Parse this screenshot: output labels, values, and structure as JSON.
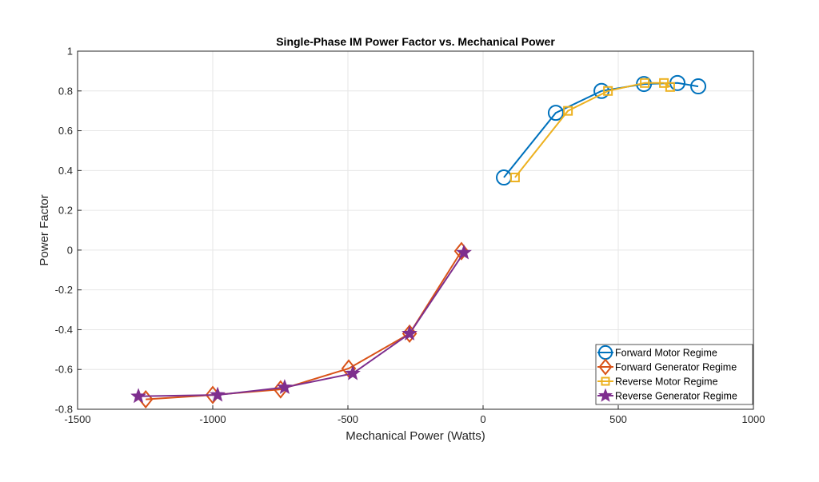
{
  "chart_data": {
    "type": "line",
    "title": "Single-Phase IM Power Factor vs. Mechanical Power",
    "xlabel": "Mechanical Power (Watts)",
    "ylabel": "Power Factor",
    "xlim": [
      -1500,
      1000
    ],
    "ylim": [
      -0.8,
      1
    ],
    "xticks": [
      -1500,
      -1000,
      -500,
      0,
      500,
      1000
    ],
    "xtick_labels": [
      "-1500",
      "-1000",
      "-500",
      "0",
      "500",
      "1000"
    ],
    "yticks": [
      -0.8,
      -0.6,
      -0.4,
      -0.2,
      0,
      0.2,
      0.4,
      0.6,
      0.8,
      1
    ],
    "ytick_labels": [
      "-0.8",
      "-0.6",
      "-0.4",
      "-0.2",
      "0",
      "0.2",
      "0.4",
      "0.6",
      "0.8",
      "1"
    ],
    "grid": true,
    "legend_position": "bottom-right",
    "series": [
      {
        "name": "Forward Motor Regime",
        "color": "#0072BD",
        "marker": "circle",
        "x": [
          77,
          269,
          438,
          595,
          719,
          796
        ],
        "y": [
          0.365,
          0.69,
          0.8,
          0.835,
          0.84,
          0.823
        ]
      },
      {
        "name": "Forward Generator Regime",
        "color": "#D95319",
        "marker": "diamond",
        "x": [
          -1248,
          -1000,
          -749,
          -497,
          -272,
          -80
        ],
        "y": [
          -0.75,
          -0.728,
          -0.7,
          -0.595,
          -0.42,
          -0.005
        ]
      },
      {
        "name": "Reverse Motor Regime",
        "color": "#EDB120",
        "marker": "square",
        "x": [
          118,
          314,
          462,
          598,
          669,
          692
        ],
        "y": [
          0.365,
          0.7,
          0.8,
          0.84,
          0.84,
          0.82
        ]
      },
      {
        "name": "Reverse Generator Regime",
        "color": "#7E2F8E",
        "marker": "star",
        "x": [
          -1275,
          -982,
          -734,
          -482,
          -272,
          -71
        ],
        "y": [
          -0.735,
          -0.728,
          -0.69,
          -0.62,
          -0.42,
          -0.013
        ]
      }
    ]
  }
}
